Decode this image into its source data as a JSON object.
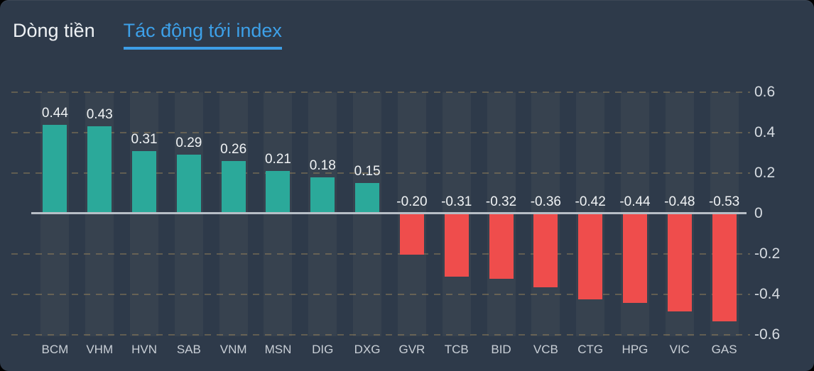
{
  "tabs": [
    {
      "label": "Dòng tiền",
      "active": false
    },
    {
      "label": "Tác động tới index",
      "active": true
    }
  ],
  "colors": {
    "background": "#2e3a4a",
    "column_band": "#37424f",
    "positive_bar": "#2ba99a",
    "negative_bar": "#ef4d4c",
    "zero_line": "#b7bec6",
    "active_tab": "#3da0e8",
    "grid_dash": "#cda761"
  },
  "chart_data": {
    "type": "bar",
    "title": "Tác động tới index",
    "categories": [
      "BCM",
      "VHM",
      "HVN",
      "SAB",
      "VNM",
      "MSN",
      "DIG",
      "DXG",
      "GVR",
      "TCB",
      "BID",
      "VCB",
      "CTG",
      "HPG",
      "VIC",
      "GAS"
    ],
    "values": [
      0.44,
      0.43,
      0.31,
      0.29,
      0.26,
      0.21,
      0.18,
      0.15,
      -0.2,
      -0.31,
      -0.32,
      -0.36,
      -0.42,
      -0.44,
      -0.48,
      -0.53
    ],
    "value_labels": [
      "0.44",
      "0.43",
      "0.31",
      "0.29",
      "0.26",
      "0.21",
      "0.18",
      "0.15",
      "-0.20",
      "-0.31",
      "-0.32",
      "-0.36",
      "-0.42",
      "-0.44",
      "-0.48",
      "-0.53"
    ],
    "y_ticks": [
      {
        "value": 0.6,
        "label": "0.6"
      },
      {
        "value": 0.4,
        "label": "0.4"
      },
      {
        "value": 0.2,
        "label": "0.2"
      },
      {
        "value": 0,
        "label": "0"
      },
      {
        "value": -0.2,
        "label": "-0.2"
      },
      {
        "value": -0.4,
        "label": "-0.4"
      },
      {
        "value": -0.6,
        "label": "-0.6"
      }
    ],
    "ylim": [
      -0.6,
      0.6
    ],
    "grid": "dashed horizontal",
    "legend": "none",
    "y_axis_position": "right"
  }
}
